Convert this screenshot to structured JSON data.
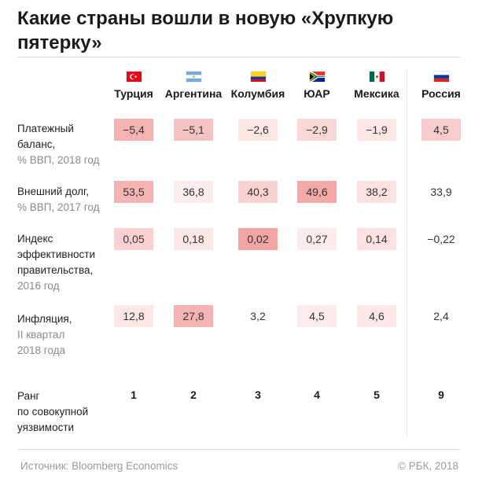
{
  "header": {
    "title_line1": "Какие страны вошли в новую «Хрупкую",
    "title_line2": "пятерку»"
  },
  "chart_data": {
    "type": "table",
    "countries": [
      {
        "name": "Турция",
        "flag": "turkey-flag"
      },
      {
        "name": "Аргентина",
        "flag": "argentina-flag"
      },
      {
        "name": "Колумбия",
        "flag": "colombia-flag"
      },
      {
        "name": "ЮАР",
        "flag": "south-africa-flag"
      },
      {
        "name": "Мексика",
        "flag": "mexico-flag"
      },
      {
        "name": "Россия",
        "flag": "russia-flag"
      }
    ],
    "rows": [
      {
        "label_lines": [
          "Платежный",
          "баланс,"
        ],
        "unit_lines": [
          "% ВВП, 2018 год"
        ],
        "values": [
          "−5,4",
          "−5,1",
          "−2,6",
          "−2,9",
          "−1,9",
          "4,5"
        ],
        "intensity": [
          0.6,
          0.45,
          0.1,
          0.25,
          0.1,
          0.35
        ]
      },
      {
        "label_lines": [
          "Внешний долг,"
        ],
        "unit_lines": [
          "% ВВП, 2017 год"
        ],
        "values": [
          "53,5",
          "36,8",
          "40,3",
          "49,6",
          "38,2",
          "33,9"
        ],
        "intensity": [
          0.6,
          0.05,
          0.3,
          0.7,
          0.15,
          0.0
        ]
      },
      {
        "label_lines": [
          "Индекс",
          "эффективности",
          "правительства,"
        ],
        "unit_lines": [
          "2016 год"
        ],
        "values": [
          "0,05",
          "0,18",
          "0,02",
          "0,27",
          "0,14",
          "−0,22"
        ],
        "intensity": [
          0.3,
          0.1,
          0.75,
          0.05,
          0.15,
          0.0
        ]
      },
      {
        "label_lines": [
          "Инфляция,"
        ],
        "unit_lines": [
          "II квартал",
          "2018 года"
        ],
        "values": [
          "12,8",
          "27,8",
          "3,2",
          "4,5",
          "4,6",
          "2,4"
        ],
        "intensity": [
          0.1,
          0.6,
          0.0,
          0.05,
          0.08,
          0.0
        ]
      }
    ],
    "rank": {
      "label_lines": [
        "Ранг",
        "по совокупной",
        "уязвимости"
      ],
      "values": [
        "1",
        "2",
        "3",
        "4",
        "5",
        "9"
      ]
    },
    "colors": {
      "heat_low": "#fdf0f0",
      "heat_high": "#ef8a8a"
    }
  },
  "footer": {
    "source": "Источник: Bloomberg Economics",
    "copyright": "© РБК, 2018"
  }
}
